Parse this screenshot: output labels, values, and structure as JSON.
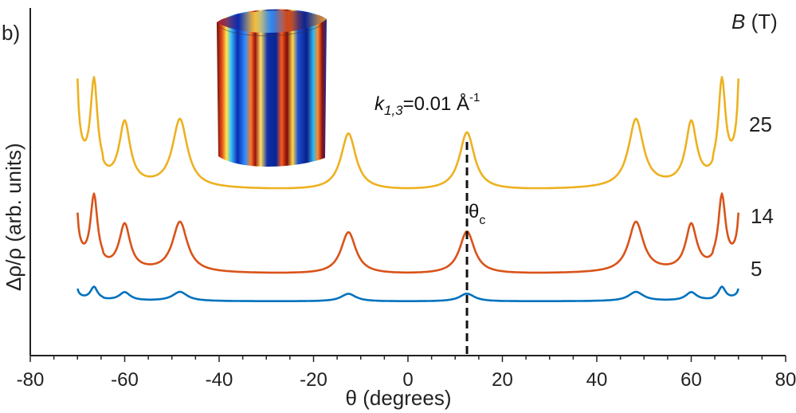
{
  "chart_data": {
    "type": "line",
    "panel_label": "b)",
    "xlabel": "θ (degrees)",
    "ylabel": "Δρ/ρ (arb. units)",
    "xlim": [
      -80,
      80
    ],
    "ylim": [
      0,
      1
    ],
    "xticks": [
      "-80",
      "-60",
      "-40",
      "-20",
      "0",
      "20",
      "40",
      "60",
      "80"
    ],
    "xtick_values": [
      -80,
      -60,
      -40,
      -20,
      0,
      20,
      40,
      60,
      80
    ],
    "legend_title": "B (T)",
    "legend_title_symbol": "B",
    "legend_title_unit": " (T)",
    "annotation_k": "k",
    "annotation_k_sub": "1,3",
    "annotation_k_value": "=0.01 Å",
    "annotation_k_sup": "-1",
    "annotation_theta": "θ",
    "annotation_theta_sub": "c",
    "critical_angle": 12.5,
    "peak_angles": [
      -66.5,
      -60,
      -48.3,
      -12.6,
      12.5,
      48.3,
      60,
      66.5
    ],
    "peak_rel_heights": [
      0.83,
      0.55,
      0.61,
      0.51,
      0.52,
      0.61,
      0.55,
      0.83
    ],
    "series": [
      {
        "name": "25",
        "color": "#EDB120",
        "baseline": 0.484,
        "peak_amp": 0.32,
        "edge_amp": 0.5
      },
      {
        "name": "14",
        "color": "#D95319",
        "baseline": 0.241,
        "peak_amp": 0.236,
        "edge_amp": 0.265
      },
      {
        "name": "5",
        "color": "#0072BD",
        "baseline": 0.157,
        "peak_amp": 0.043,
        "edge_amp": 0.056
      }
    ],
    "inset": "cylinder Fermi surface color map"
  }
}
